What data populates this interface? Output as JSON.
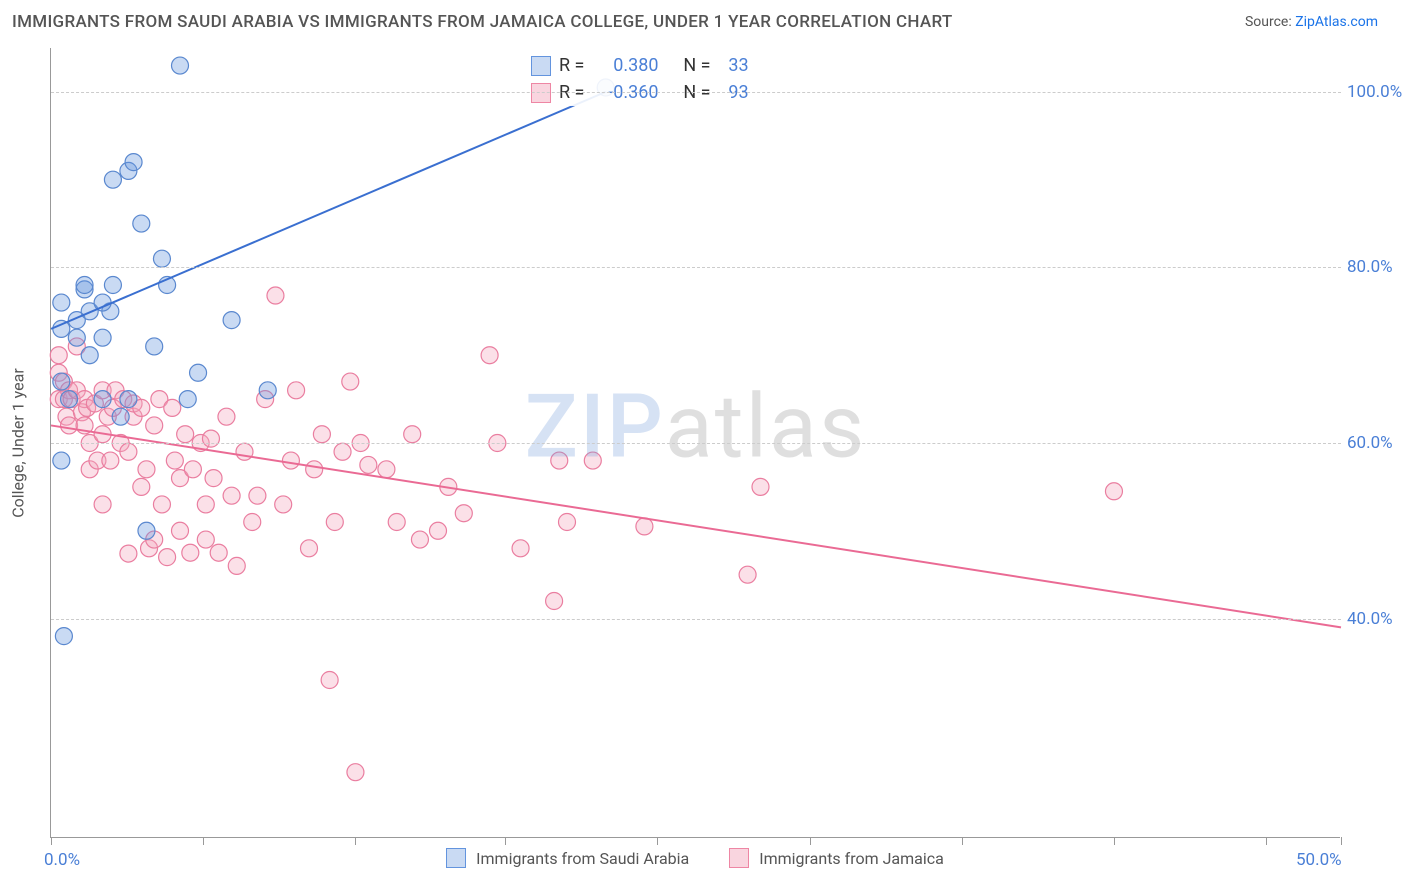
{
  "title": "IMMIGRANTS FROM SAUDI ARABIA VS IMMIGRANTS FROM JAMAICA COLLEGE, UNDER 1 YEAR CORRELATION CHART",
  "source_prefix": "Source: ",
  "source_link": "ZipAtlas.com",
  "y_axis_label": "College, Under 1 year",
  "watermark_a": "ZIP",
  "watermark_b": "atlas",
  "chart": {
    "type": "scatter",
    "xlim": [
      0,
      50
    ],
    "ylim": [
      15,
      105
    ],
    "x_ticks": [
      0,
      5.9,
      11.8,
      17.6,
      23.5,
      29.4,
      35.3,
      41.2,
      47.1,
      50
    ],
    "x_tick_labels": {
      "0": "0.0%",
      "50": "50.0%"
    },
    "y_ticks": [
      40,
      60,
      80,
      100
    ],
    "y_tick_labels": [
      "40.0%",
      "60.0%",
      "80.0%",
      "100.0%"
    ],
    "grid_color": "#cccccc",
    "background_color": "#ffffff",
    "axis_color": "#999999",
    "tick_label_color": "#4a7fd6",
    "marker_radius": 8.5,
    "marker_opacity": 0.35,
    "series": [
      {
        "id": "saudi",
        "label": "Immigrants from Saudi Arabia",
        "color": "#6394de",
        "stroke": "#5a88cf",
        "R": "0.380",
        "N": "33",
        "trend": {
          "x1": 0,
          "y1": 73,
          "x2": 21.5,
          "y2": 100,
          "stroke": "#3a6fd0",
          "stroke_width": 2
        },
        "points": [
          [
            0.4,
            73
          ],
          [
            0.4,
            76
          ],
          [
            0.4,
            67
          ],
          [
            0.7,
            65
          ],
          [
            0.4,
            58
          ],
          [
            1.0,
            72
          ],
          [
            1.0,
            74
          ],
          [
            1.3,
            77.5
          ],
          [
            1.3,
            78
          ],
          [
            1.5,
            75
          ],
          [
            1.5,
            70
          ],
          [
            2.0,
            72
          ],
          [
            2.0,
            65
          ],
          [
            2.3,
            75
          ],
          [
            2.4,
            90
          ],
          [
            2.4,
            78
          ],
          [
            2.7,
            63
          ],
          [
            3.0,
            65
          ],
          [
            3.0,
            91
          ],
          [
            3.2,
            92
          ],
          [
            3.5,
            85
          ],
          [
            3.7,
            50
          ],
          [
            4.0,
            71
          ],
          [
            4.3,
            81
          ],
          [
            4.5,
            78
          ],
          [
            5.0,
            103
          ],
          [
            5.3,
            65
          ],
          [
            5.7,
            68
          ],
          [
            7.0,
            74
          ],
          [
            8.4,
            66
          ],
          [
            21.5,
            100.5
          ],
          [
            0.5,
            38
          ],
          [
            2.0,
            76
          ]
        ]
      },
      {
        "id": "jamaica",
        "label": "Immigrants from Jamaica",
        "color": "#f4a6bd",
        "stroke": "#ea7ea0",
        "R": "-0.360",
        "N": "93",
        "trend": {
          "x1": 0,
          "y1": 62,
          "x2": 50,
          "y2": 39,
          "stroke": "#ea6a94",
          "stroke_width": 2
        },
        "points": [
          [
            0.3,
            65
          ],
          [
            0.3,
            68
          ],
          [
            0.3,
            70
          ],
          [
            0.5,
            67
          ],
          [
            0.5,
            65
          ],
          [
            0.6,
            63
          ],
          [
            0.7,
            66
          ],
          [
            0.7,
            62
          ],
          [
            0.8,
            65
          ],
          [
            1.0,
            71
          ],
          [
            1.0,
            66
          ],
          [
            1.2,
            63.5
          ],
          [
            1.3,
            65
          ],
          [
            1.3,
            62
          ],
          [
            1.4,
            64
          ],
          [
            1.5,
            57
          ],
          [
            1.5,
            60
          ],
          [
            1.7,
            64.5
          ],
          [
            1.8,
            58
          ],
          [
            2.0,
            66
          ],
          [
            2.0,
            61
          ],
          [
            2.0,
            53
          ],
          [
            2.2,
            63
          ],
          [
            2.3,
            58
          ],
          [
            2.4,
            64
          ],
          [
            2.5,
            66
          ],
          [
            2.7,
            60
          ],
          [
            2.8,
            65
          ],
          [
            3.0,
            59
          ],
          [
            3.0,
            47.4
          ],
          [
            3.2,
            63
          ],
          [
            3.2,
            64.5
          ],
          [
            3.5,
            55
          ],
          [
            3.5,
            64
          ],
          [
            3.7,
            57
          ],
          [
            3.8,
            48
          ],
          [
            4.0,
            49
          ],
          [
            4.0,
            62
          ],
          [
            4.2,
            65
          ],
          [
            4.3,
            53
          ],
          [
            4.5,
            47
          ],
          [
            4.7,
            64
          ],
          [
            4.8,
            58
          ],
          [
            5.0,
            56
          ],
          [
            5.0,
            50
          ],
          [
            5.2,
            61
          ],
          [
            5.4,
            47.5
          ],
          [
            5.5,
            57
          ],
          [
            5.8,
            60
          ],
          [
            6.0,
            49
          ],
          [
            6.0,
            53
          ],
          [
            6.2,
            60.5
          ],
          [
            6.3,
            56
          ],
          [
            6.5,
            47.5
          ],
          [
            6.8,
            63
          ],
          [
            7.0,
            54
          ],
          [
            7.2,
            46
          ],
          [
            7.5,
            59
          ],
          [
            7.8,
            51
          ],
          [
            8.0,
            54
          ],
          [
            8.3,
            65
          ],
          [
            8.7,
            76.8
          ],
          [
            9.0,
            53
          ],
          [
            9.3,
            58
          ],
          [
            9.5,
            66
          ],
          [
            10.0,
            48
          ],
          [
            10.2,
            57
          ],
          [
            10.5,
            61
          ],
          [
            10.8,
            33
          ],
          [
            11.0,
            51
          ],
          [
            11.3,
            59
          ],
          [
            11.6,
            67
          ],
          [
            11.8,
            22.5
          ],
          [
            12.0,
            60
          ],
          [
            12.3,
            57.5
          ],
          [
            13.0,
            57
          ],
          [
            13.4,
            51
          ],
          [
            14.0,
            61
          ],
          [
            14.3,
            49
          ],
          [
            15.0,
            50
          ],
          [
            15.4,
            55
          ],
          [
            16.0,
            52
          ],
          [
            17.0,
            70
          ],
          [
            17.3,
            60
          ],
          [
            18.2,
            48
          ],
          [
            19.5,
            42
          ],
          [
            19.7,
            58
          ],
          [
            20.0,
            51
          ],
          [
            21.0,
            58
          ],
          [
            23.0,
            50.5
          ],
          [
            27.0,
            45
          ],
          [
            27.5,
            55
          ],
          [
            41.2,
            54.5
          ]
        ]
      }
    ]
  },
  "legend_top": {
    "R_label": "R =",
    "N_label": "N ="
  }
}
